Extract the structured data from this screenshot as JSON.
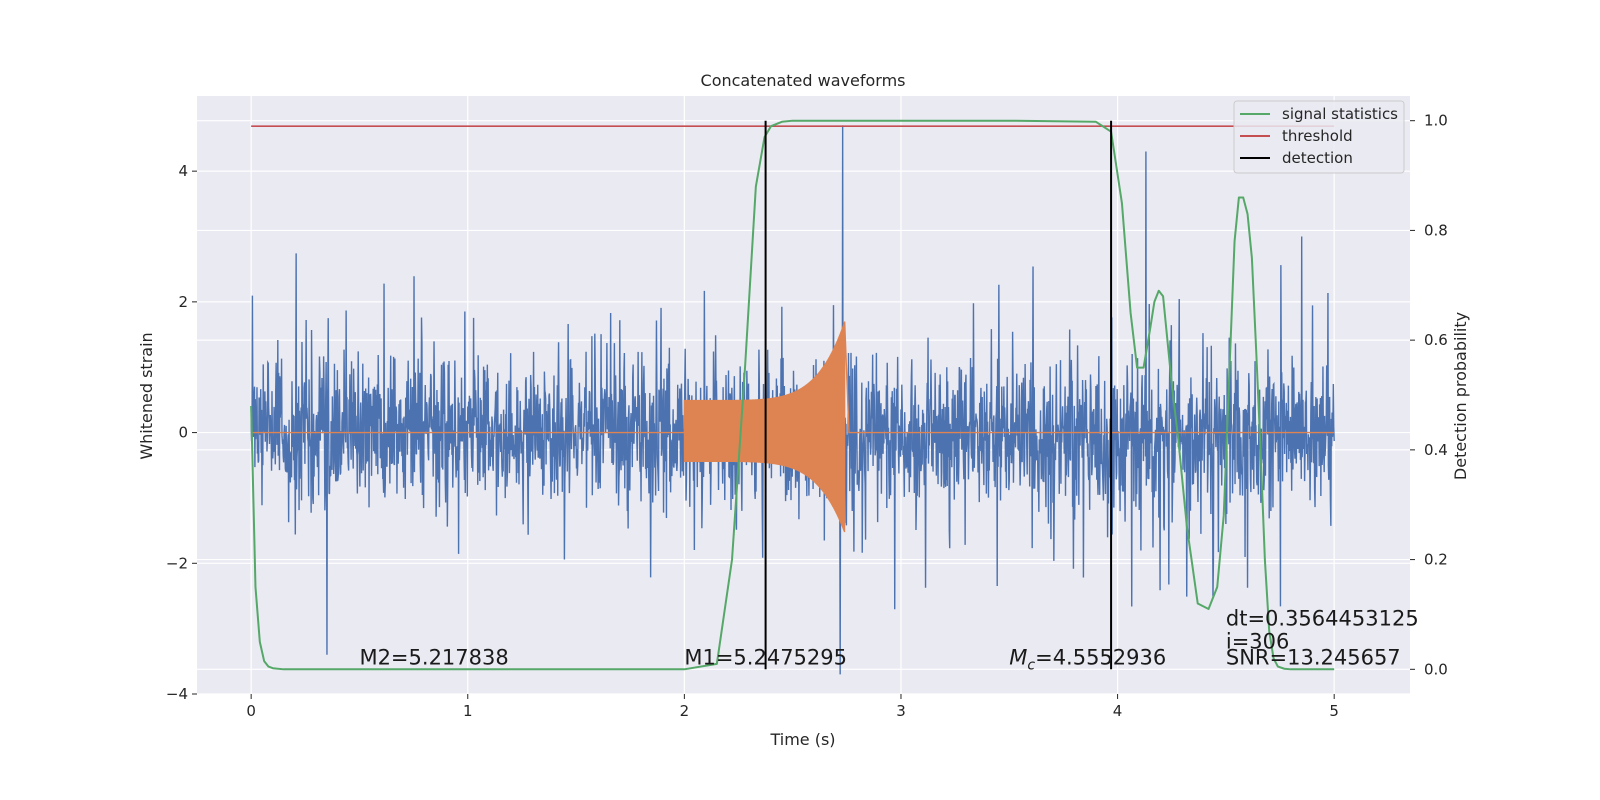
{
  "chart_data": {
    "type": "line",
    "title": "Concatenated waveforms",
    "xlabel": "Time (s)",
    "ylabel": "Whitened strain",
    "y2label": "Detection probability",
    "xlim": [
      -0.25,
      5.35
    ],
    "ylim": [
      -4.0,
      5.15
    ],
    "y2lim": [
      -0.045,
      1.045
    ],
    "x_ticks": [
      0,
      1,
      2,
      3,
      4,
      5
    ],
    "x_tick_labels": [
      "0",
      "1",
      "2",
      "3",
      "4",
      "5"
    ],
    "y_ticks": [
      -4,
      -2,
      0,
      2,
      4
    ],
    "y_tick_labels": [
      "−4",
      "−2",
      "0",
      "2",
      "4"
    ],
    "y2_ticks": [
      0.0,
      0.2,
      0.4,
      0.6,
      0.8,
      1.0
    ],
    "y2_tick_labels": [
      "0.0",
      "0.2",
      "0.4",
      "0.6",
      "0.8",
      "1.0"
    ],
    "grid": true,
    "legend": {
      "placement": "upper right",
      "entries": [
        {
          "label": "signal statistics",
          "color": "#55a868"
        },
        {
          "label": "threshold",
          "color": "#c44e52"
        },
        {
          "label": "detection",
          "color": "#000000"
        }
      ]
    },
    "series": [
      {
        "role": "whitened_strain",
        "color": "#4c72b0",
        "x_range": [
          0,
          5
        ],
        "envelope_typical": [
          -1.8,
          1.8
        ],
        "peaks": [
          [
            2.73,
            4.7
          ],
          [
            4.13,
            4.3
          ],
          [
            4.85,
            3.0
          ],
          [
            0.35,
            -3.4
          ],
          [
            2.72,
            -3.7
          ]
        ]
      },
      {
        "role": "injected_waveform",
        "color": "#dd8452",
        "x_range": [
          0,
          5
        ],
        "chirp_start": 2.0,
        "chirp_end": 2.74,
        "amplitude_start": 0.5,
        "amplitude_peak": 1.7
      },
      {
        "name": "signal statistics",
        "color": "#55a868",
        "axis": "right",
        "x": [
          0.0,
          0.02,
          0.04,
          0.06,
          0.08,
          0.1,
          0.15,
          0.3,
          1.0,
          2.0,
          2.15,
          2.22,
          2.28,
          2.33,
          2.37,
          2.4,
          2.45,
          2.5,
          3.0,
          3.5,
          3.9,
          3.97,
          4.02,
          4.06,
          4.09,
          4.12,
          4.15,
          4.17,
          4.19,
          4.21,
          4.23,
          4.25,
          4.28,
          4.32,
          4.37,
          4.42,
          4.46,
          4.49,
          4.52,
          4.54,
          4.56,
          4.58,
          4.6,
          4.62,
          4.64,
          4.66,
          4.68,
          4.7,
          4.72,
          4.74,
          4.77,
          4.8,
          4.85,
          5.0
        ],
        "y": [
          0.48,
          0.15,
          0.05,
          0.015,
          0.005,
          0.002,
          0.0,
          0.0,
          0.0,
          0.0,
          0.01,
          0.2,
          0.55,
          0.88,
          0.97,
          0.99,
          0.998,
          1.0,
          1.0,
          1.0,
          0.998,
          0.98,
          0.85,
          0.65,
          0.55,
          0.55,
          0.62,
          0.67,
          0.69,
          0.68,
          0.6,
          0.52,
          0.42,
          0.26,
          0.12,
          0.11,
          0.15,
          0.28,
          0.58,
          0.78,
          0.86,
          0.86,
          0.83,
          0.75,
          0.58,
          0.4,
          0.2,
          0.07,
          0.02,
          0.005,
          0.001,
          0.0,
          0.0,
          0.0
        ]
      },
      {
        "name": "threshold",
        "color": "#c44e52",
        "axis": "right",
        "x": [
          0,
          5
        ],
        "y": [
          0.99,
          0.99
        ]
      },
      {
        "name": "detection",
        "color": "#000000",
        "type": "vlines",
        "x": [
          2.375,
          3.97
        ],
        "ymin": 0.0,
        "ymax": 1.0
      }
    ],
    "annotations": [
      {
        "text": "M2=5.217838",
        "x": 0.5,
        "y": -3.55
      },
      {
        "text": "M1=5.2475295",
        "x": 2.0,
        "y": -3.55
      },
      {
        "text_prefix": "M",
        "subscript": "c",
        "text": "=4.5552936",
        "x": 3.5,
        "y": -3.55
      },
      {
        "text": "SNR=13.245657",
        "x": 4.5,
        "y": -3.55
      },
      {
        "text": "dt=0.3564453125",
        "x": 4.5,
        "y": -2.95
      },
      {
        "text": " i=306",
        "x": 4.5,
        "y": -3.3
      }
    ]
  }
}
